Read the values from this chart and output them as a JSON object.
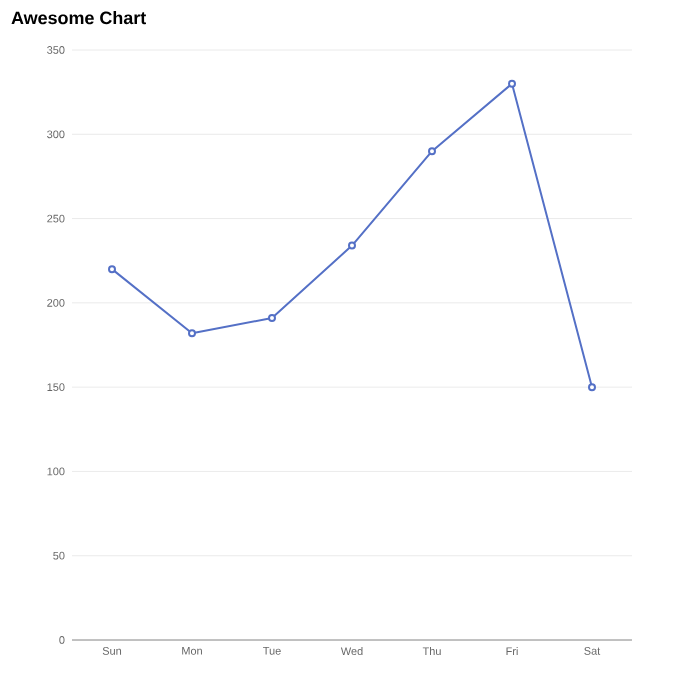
{
  "chart_data": {
    "type": "line",
    "title": "Awesome Chart",
    "categories": [
      "Sun",
      "Mon",
      "Tue",
      "Wed",
      "Thu",
      "Fri",
      "Sat"
    ],
    "series": [
      {
        "color": "#5470c6",
        "values": [
          220,
          182,
          191,
          234,
          290,
          330,
          150
        ]
      }
    ],
    "ylim": [
      0,
      350
    ],
    "yticks": [
      0,
      50,
      100,
      150,
      200,
      250,
      300,
      350
    ],
    "grid": "y",
    "marker": "circle"
  }
}
